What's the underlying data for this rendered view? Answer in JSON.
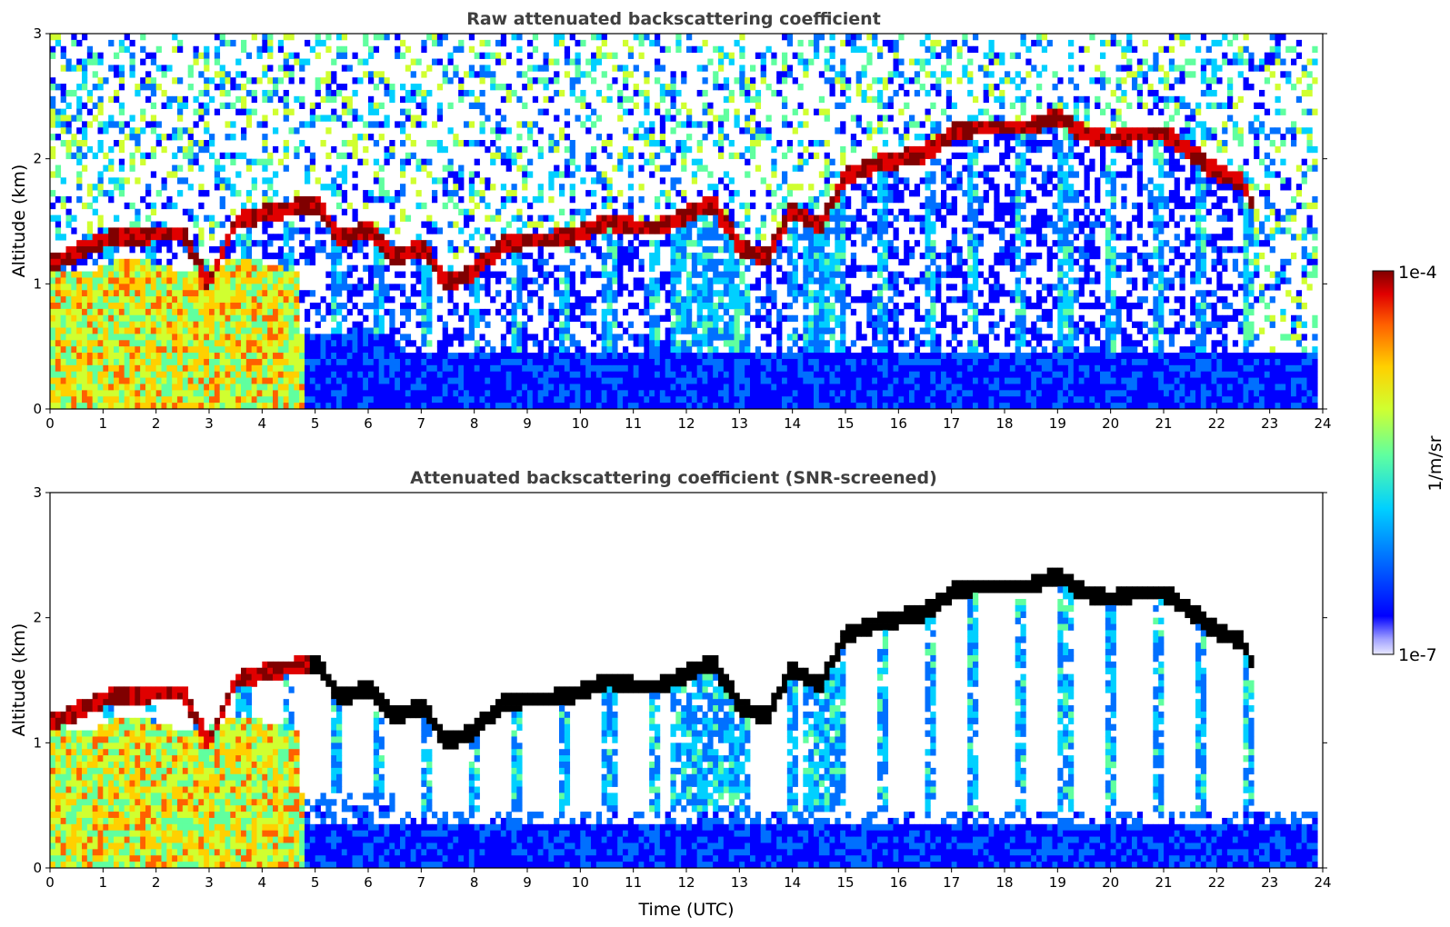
{
  "chart_data": [
    {
      "type": "heatmap",
      "title": "Raw attenuated backscattering coefficient",
      "ylabel": "Altitude (km)",
      "xlabel": "",
      "xlim": [
        0,
        24
      ],
      "ylim": [
        0,
        3
      ],
      "xticks": [
        "0",
        "1",
        "2",
        "3",
        "4",
        "5",
        "6",
        "7",
        "8",
        "9",
        "10",
        "11",
        "12",
        "13",
        "14",
        "15",
        "16",
        "17",
        "18",
        "19",
        "20",
        "21",
        "22",
        "23",
        "24"
      ],
      "yticks": [
        "0",
        "1",
        "2",
        "3"
      ],
      "screened": false
    },
    {
      "type": "heatmap",
      "title": "Attenuated backscattering coefficient (SNR-screened)",
      "ylabel": "Altitude (km)",
      "xlabel": "Time (UTC)",
      "xlim": [
        0,
        24
      ],
      "ylim": [
        0,
        3
      ],
      "xticks": [
        "0",
        "1",
        "2",
        "3",
        "4",
        "5",
        "6",
        "7",
        "8",
        "9",
        "10",
        "11",
        "12",
        "13",
        "14",
        "15",
        "16",
        "17",
        "18",
        "19",
        "20",
        "21",
        "22",
        "23",
        "24"
      ],
      "yticks": [
        "0",
        "1",
        "2",
        "3"
      ],
      "screened": true
    }
  ],
  "colorbar": {
    "label": "1/m/sr",
    "max_label": "1e-4",
    "min_label": "1e-7",
    "scale": "log",
    "colormap": "jet",
    "range": [
      1e-07,
      0.0001
    ],
    "colors": [
      "#e8e8ff",
      "#a0a0ff",
      "#0000ff",
      "#0070ff",
      "#00d0ff",
      "#60ff9f",
      "#d0ff30",
      "#ffd000",
      "#ff6000",
      "#e00000",
      "#800000"
    ]
  },
  "cloud_layer_km": [
    [
      0.0,
      1.15
    ],
    [
      1.0,
      1.35
    ],
    [
      2.0,
      1.4
    ],
    [
      2.5,
      1.4
    ],
    [
      3.0,
      1.0
    ],
    [
      3.5,
      1.5
    ],
    [
      4.0,
      1.55
    ],
    [
      4.5,
      1.6
    ],
    [
      5.0,
      1.65
    ],
    [
      5.5,
      1.35
    ],
    [
      6.0,
      1.45
    ],
    [
      6.5,
      1.2
    ],
    [
      7.0,
      1.3
    ],
    [
      7.5,
      1.0
    ],
    [
      8.0,
      1.1
    ],
    [
      8.5,
      1.3
    ],
    [
      9.0,
      1.35
    ],
    [
      9.5,
      1.35
    ],
    [
      10.0,
      1.4
    ],
    [
      10.5,
      1.5
    ],
    [
      11.0,
      1.45
    ],
    [
      11.5,
      1.45
    ],
    [
      12.0,
      1.55
    ],
    [
      12.5,
      1.65
    ],
    [
      13.0,
      1.3
    ],
    [
      13.5,
      1.2
    ],
    [
      14.0,
      1.6
    ],
    [
      14.5,
      1.45
    ],
    [
      15.0,
      1.85
    ],
    [
      15.5,
      1.95
    ],
    [
      16.0,
      2.0
    ],
    [
      16.5,
      2.05
    ],
    [
      17.0,
      2.2
    ],
    [
      17.5,
      2.25
    ],
    [
      18.0,
      2.25
    ],
    [
      18.5,
      2.25
    ],
    [
      19.0,
      2.35
    ],
    [
      19.5,
      2.2
    ],
    [
      20.0,
      2.15
    ],
    [
      20.5,
      2.2
    ],
    [
      21.0,
      2.2
    ],
    [
      21.5,
      2.05
    ],
    [
      22.0,
      1.9
    ],
    [
      22.5,
      1.8
    ],
    [
      22.7,
      1.6
    ]
  ]
}
